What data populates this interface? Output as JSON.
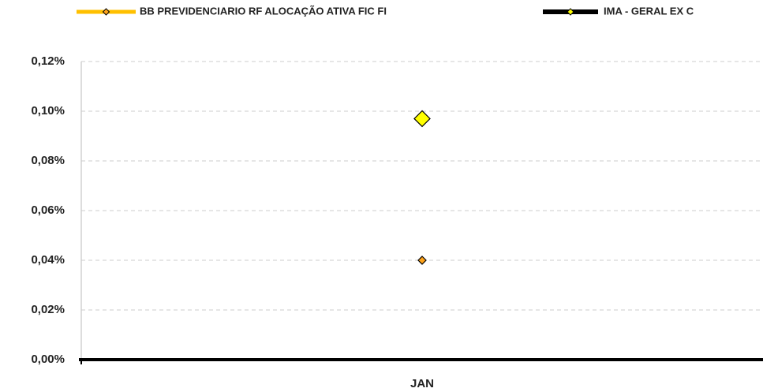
{
  "chart_data": {
    "type": "line",
    "categories": [
      "JAN"
    ],
    "series": [
      {
        "name": "BB PREVIDENCIARIO RF ALOCAÇÃO ATIVA FIC FI",
        "color": "#ffc000",
        "marker_color": "#ffa31a",
        "values": [
          0.04
        ]
      },
      {
        "name": "IMA - GERAL EX C",
        "color": "#000000",
        "marker_color": "#ffff00",
        "values": [
          0.097
        ]
      }
    ],
    "ylim": [
      0,
      0.12
    ],
    "yticks": [
      {
        "value": 0,
        "label": "0,00%"
      },
      {
        "value": 0.02,
        "label": "0,02%"
      },
      {
        "value": 0.04,
        "label": "0,04%"
      },
      {
        "value": 0.06,
        "label": "0,06%"
      },
      {
        "value": 0.08,
        "label": "0,08%"
      },
      {
        "value": 0.1,
        "label": "0,10%"
      },
      {
        "value": 0.12,
        "label": "0,12%"
      }
    ],
    "grid": true,
    "legend": "top"
  }
}
